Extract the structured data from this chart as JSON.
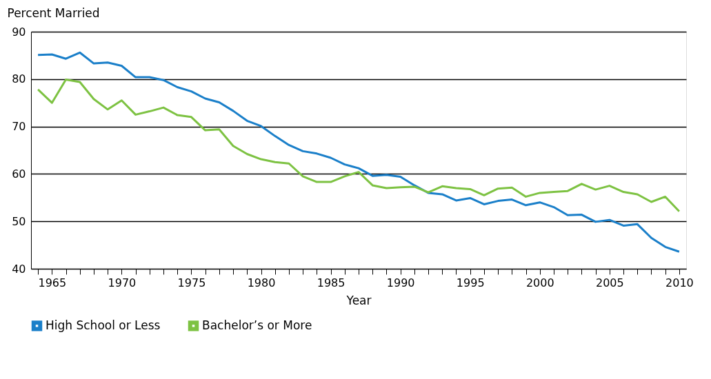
{
  "chart_data": {
    "type": "line",
    "xlabel": "Year",
    "ylabel": "Percent Married",
    "x": [
      1964,
      1965,
      1966,
      1967,
      1968,
      1969,
      1970,
      1971,
      1972,
      1973,
      1974,
      1975,
      1976,
      1977,
      1978,
      1979,
      1980,
      1981,
      1982,
      1983,
      1984,
      1985,
      1986,
      1987,
      1988,
      1989,
      1990,
      1991,
      1992,
      1993,
      1994,
      1995,
      1996,
      1997,
      1998,
      1999,
      2000,
      2001,
      2002,
      2003,
      2004,
      2005,
      2006,
      2007,
      2008,
      2009,
      2010
    ],
    "series": [
      {
        "name": "High School or Less",
        "color": "#1a7fc9",
        "values": [
          85.1,
          85.2,
          84.3,
          85.6,
          83.3,
          83.5,
          82.8,
          80.4,
          80.4,
          79.8,
          78.3,
          77.4,
          75.9,
          75.1,
          73.3,
          71.2,
          70.1,
          68.0,
          66.1,
          64.8,
          64.3,
          63.4,
          62.0,
          61.2,
          59.6,
          59.8,
          59.4,
          57.6,
          56.0,
          55.7,
          54.4,
          54.9,
          53.6,
          54.3,
          54.6,
          53.4,
          54.0,
          53.0,
          51.3,
          51.4,
          49.9,
          50.3,
          49.1,
          49.4,
          46.5,
          44.6,
          43.6
        ]
      },
      {
        "name": "Bachelor’s or More",
        "color": "#7dc242",
        "values": [
          77.8,
          75.0,
          79.9,
          79.4,
          75.8,
          73.6,
          75.5,
          72.5,
          73.2,
          74.0,
          72.4,
          72.0,
          69.2,
          69.4,
          65.9,
          64.2,
          63.1,
          62.5,
          62.2,
          59.5,
          58.3,
          58.3,
          59.5,
          60.4,
          57.6,
          57.0,
          57.2,
          57.3,
          56.1,
          57.4,
          57.0,
          56.8,
          55.5,
          56.9,
          57.1,
          55.2,
          56.0,
          56.2,
          56.4,
          57.9,
          56.7,
          57.5,
          56.2,
          55.7,
          54.1,
          55.2,
          52.1
        ]
      }
    ],
    "xlim": [
      1963.5,
      2010.5
    ],
    "xticks": [
      {
        "value": 1964,
        "label": null
      },
      1965,
      {
        "value": 1966,
        "label": null
      },
      {
        "value": 1967,
        "label": null
      },
      {
        "value": 1968,
        "label": null
      },
      {
        "value": 1969,
        "label": null
      },
      1970,
      {
        "value": 1971,
        "label": null
      },
      {
        "value": 1972,
        "label": null
      },
      {
        "value": 1973,
        "label": null
      },
      {
        "value": 1974,
        "label": null
      },
      1975,
      {
        "value": 1976,
        "label": null
      },
      {
        "value": 1977,
        "label": null
      },
      {
        "value": 1978,
        "label": null
      },
      {
        "value": 1979,
        "label": null
      },
      1980,
      {
        "value": 1981,
        "label": null
      },
      {
        "value": 1982,
        "label": null
      },
      {
        "value": 1983,
        "label": null
      },
      {
        "value": 1984,
        "label": null
      },
      1985,
      {
        "value": 1986,
        "label": null
      },
      {
        "value": 1987,
        "label": null
      },
      {
        "value": 1988,
        "label": null
      },
      {
        "value": 1989,
        "label": null
      },
      1990,
      {
        "value": 1991,
        "label": null
      },
      {
        "value": 1992,
        "label": null
      },
      {
        "value": 1993,
        "label": null
      },
      {
        "value": 1994,
        "label": null
      },
      1995,
      {
        "value": 1996,
        "label": null
      },
      {
        "value": 1997,
        "label": null
      },
      {
        "value": 1998,
        "label": null
      },
      {
        "value": 1999,
        "label": null
      },
      2000,
      {
        "value": 2001,
        "label": null
      },
      {
        "value": 2002,
        "label": null
      },
      {
        "value": 2003,
        "label": null
      },
      {
        "value": 2004,
        "label": null
      },
      2005,
      {
        "value": 2006,
        "label": null
      },
      {
        "value": 2007,
        "label": null
      },
      {
        "value": 2008,
        "label": null
      },
      {
        "value": 2009,
        "label": null
      },
      2010
    ],
    "ylim": [
      40,
      90
    ],
    "yticks": [
      40,
      50,
      60,
      70,
      80,
      90
    ],
    "grid": "y",
    "legend": "bottom",
    "marker": "none",
    "line_style": "solid"
  }
}
